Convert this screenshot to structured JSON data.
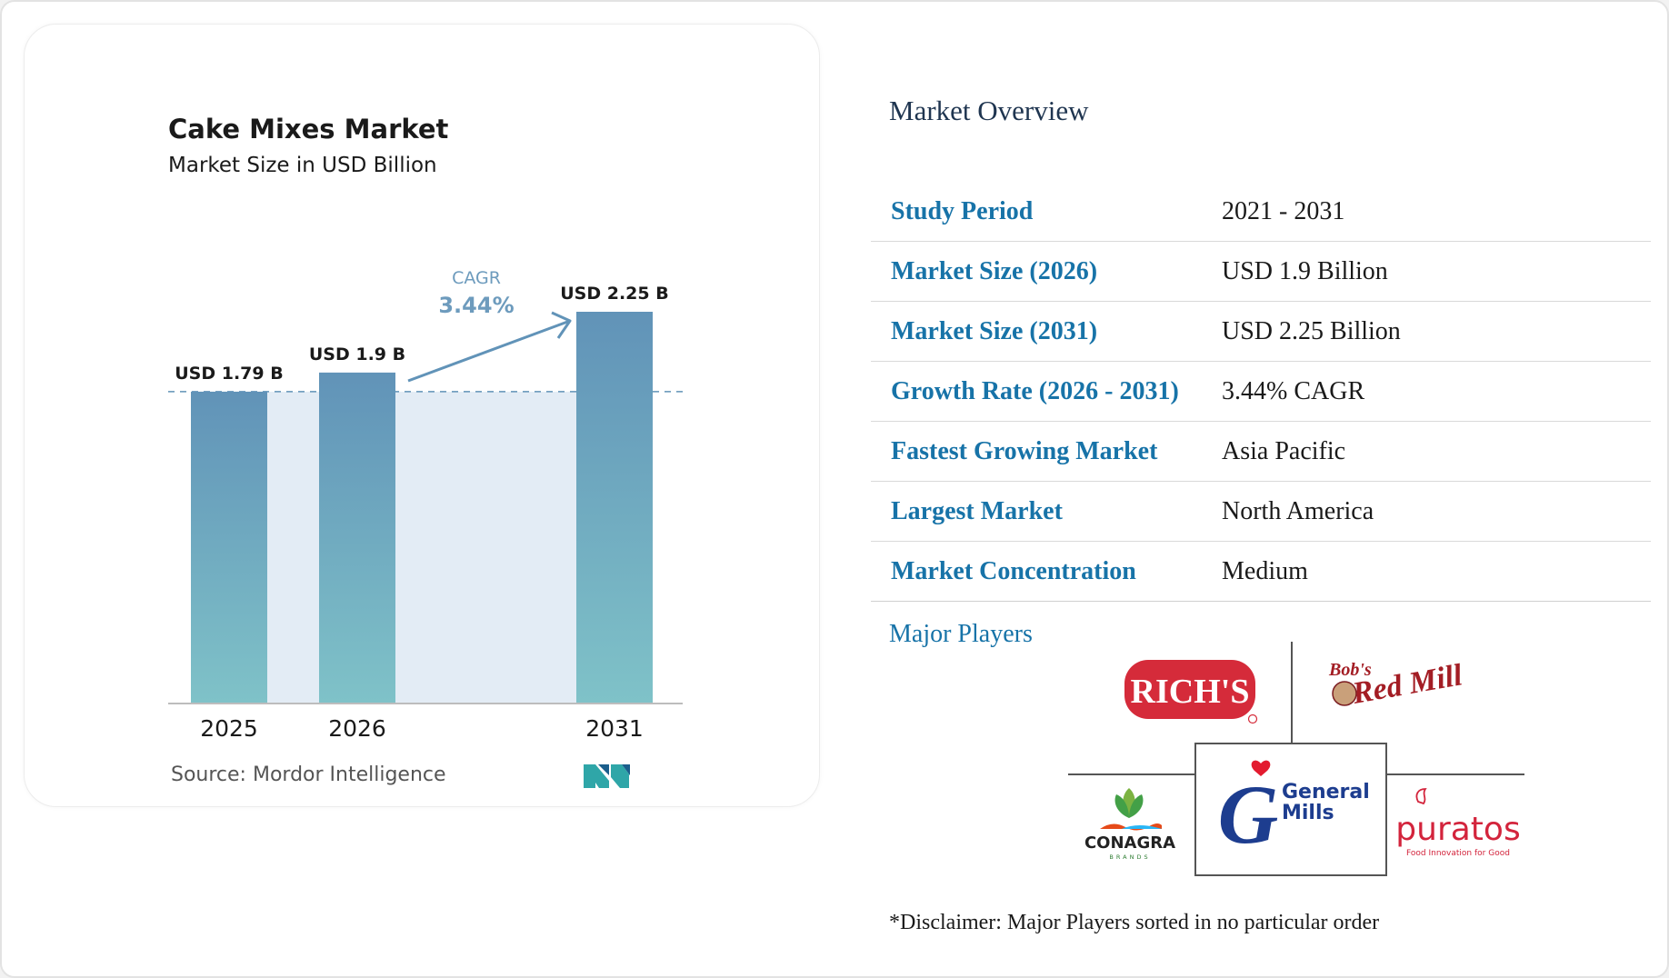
{
  "chart_data": {
    "type": "bar",
    "title": "Cake Mixes Market",
    "subtitle": "Market Size in USD Billion",
    "categories": [
      "2025",
      "2026",
      "2031"
    ],
    "values": [
      1.79,
      1.9,
      2.25
    ],
    "value_labels": [
      "USD 1.79 B",
      "USD 1.9 B",
      "USD 2.25 B"
    ],
    "cagr_label": "CAGR",
    "cagr_value": "3.44%",
    "source": "Source: Mordor Intelligence",
    "bar_color_top": "#6193b8",
    "bar_color_bottom": "#7fc2c8",
    "band_color": "#e3ecf5",
    "arrow_color": "#6193b8",
    "ylim": [
      0,
      2.25
    ],
    "grid": false
  },
  "overview": {
    "title": "Market Overview",
    "rows": [
      {
        "label": "Study Period",
        "value": "2021 - 2031"
      },
      {
        "label": "Market Size (2026)",
        "value": "USD 1.9 Billion"
      },
      {
        "label": "Market Size (2031)",
        "value": "USD 2.25 Billion"
      },
      {
        "label": "Growth Rate (2026 - 2031)",
        "value": "3.44% CAGR"
      },
      {
        "label": "Fastest Growing Market",
        "value": "Asia Pacific"
      },
      {
        "label": "Largest Market",
        "value": "North America"
      },
      {
        "label": "Market Concentration",
        "value": "Medium"
      }
    ]
  },
  "players": {
    "title": "Major Players",
    "logos": {
      "richs": "RICH'S",
      "bobs": "Bob's",
      "redmill": "Red Mill",
      "general": "General",
      "mills": "Mills",
      "conagra": "CONAGRA",
      "conagra_sub": "BRANDS",
      "puratos": "puratos",
      "puratos_sub": "Food Innovation for Good"
    },
    "disclaimer": "*Disclaimer: Major Players sorted in no particular order"
  }
}
